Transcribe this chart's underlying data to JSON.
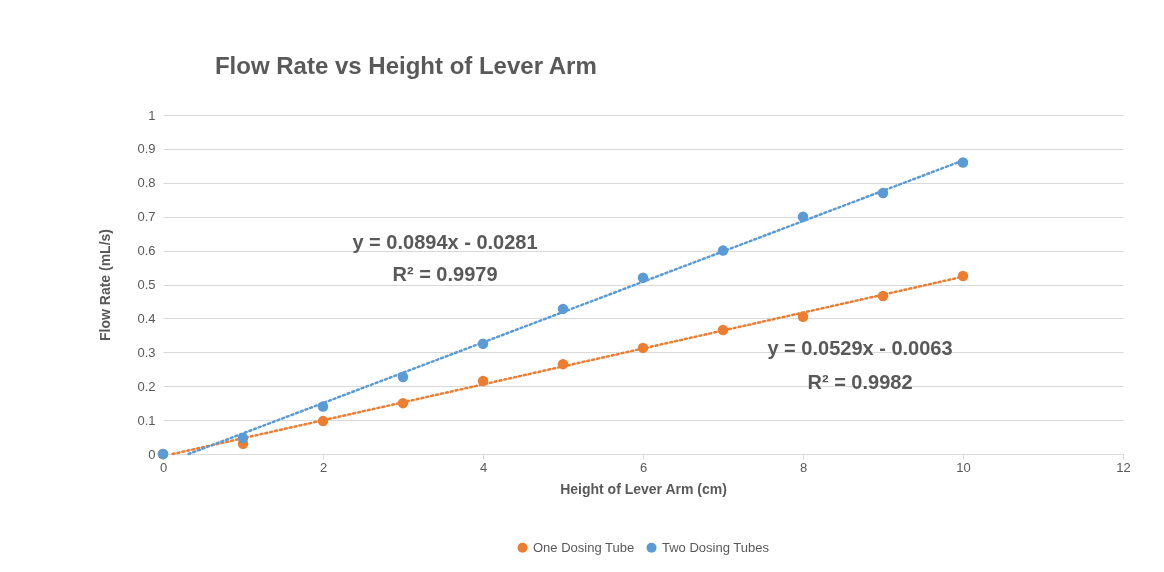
{
  "chart_data": {
    "type": "scatter",
    "title": "Flow Rate vs Height of Lever Arm",
    "xlabel": "Height of Lever Arm (cm)",
    "ylabel": "Flow Rate (mL/s)",
    "x": [
      0,
      1,
      2,
      3,
      4,
      5,
      6,
      7,
      8,
      9,
      10
    ],
    "series": [
      {
        "name": "One Dosing Tube",
        "color": "#ed7d31",
        "values": [
          0,
          0.03,
          0.097,
          0.15,
          0.215,
          0.265,
          0.313,
          0.366,
          0.405,
          0.466,
          0.525
        ]
      },
      {
        "name": "Two Dosing Tubes",
        "color": "#5b9bd5",
        "values": [
          0,
          0.047,
          0.14,
          0.227,
          0.325,
          0.428,
          0.52,
          0.6,
          0.7,
          0.77,
          0.86
        ]
      },
      {
        "type": "line",
        "line_style": "dotted",
        "marker": "none",
        "color": "#ed7d31",
        "x": [
          0.12,
          10
        ],
        "values": [
          0,
          0.523
        ]
      },
      {
        "type": "line",
        "line_style": "dotted",
        "marker": "none",
        "color": "#5b9bd5",
        "x": [
          0.32,
          10
        ],
        "values": [
          0,
          0.866
        ]
      }
    ],
    "annotations": [
      "y = 0.0894x - 0.0281",
      "R² = 0.9979",
      "y = 0.0529x - 0.0063",
      "R² = 0.9982"
    ],
    "xlim": [
      0,
      12
    ],
    "xticks": [
      0,
      2,
      4,
      6,
      8,
      10,
      12
    ],
    "ylim": [
      0,
      1
    ],
    "yticks": [
      0,
      0.1,
      0.2,
      0.3,
      0.4,
      0.5,
      0.6,
      0.7,
      0.8,
      0.9,
      1
    ],
    "grid": "y",
    "legend": "bottom",
    "marker": "circle"
  }
}
